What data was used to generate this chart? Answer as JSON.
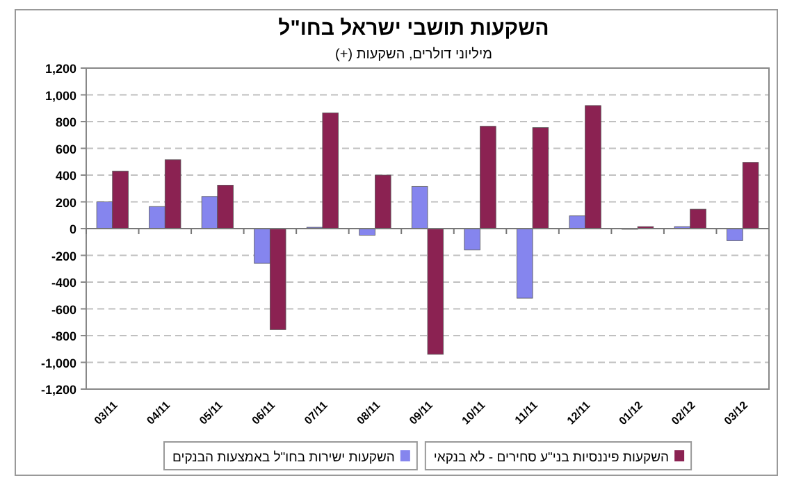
{
  "chart_data": {
    "type": "bar",
    "title": "השקעות תושבי ישראל בחו\"ל",
    "subtitle": "מיליוני דולרים, השקעות (+)",
    "categories": [
      "03/11",
      "04/11",
      "05/11",
      "06/11",
      "07/11",
      "08/11",
      "09/11",
      "10/11",
      "11/11",
      "12/11",
      "01/12",
      "02/12",
      "03/12"
    ],
    "series": [
      {
        "name": "השקעות ישירות בחו\"ל באמצעות הבנקים",
        "color": "#8585ee",
        "values": [
          200,
          165,
          240,
          -260,
          10,
          -50,
          315,
          -160,
          -520,
          95,
          -5,
          15,
          -90
        ]
      },
      {
        "name": "השקעות פיננסיות בני\"ע סחירים - לא בנקאי",
        "color": "#8b2252",
        "values": [
          430,
          515,
          325,
          -755,
          865,
          400,
          -940,
          765,
          755,
          920,
          15,
          145,
          495
        ]
      }
    ],
    "ylim": [
      -1200,
      1200
    ],
    "yticks": [
      {
        "value": -1200,
        "label": "-1,200"
      },
      {
        "value": -1000,
        "label": "-1,000"
      },
      -800,
      -600,
      -400,
      -200,
      0,
      200,
      400,
      600,
      800,
      {
        "value": 1000,
        "label": "1,000"
      },
      {
        "value": 1200,
        "label": "1,200"
      }
    ],
    "grid": "y",
    "legend": "bottom"
  }
}
